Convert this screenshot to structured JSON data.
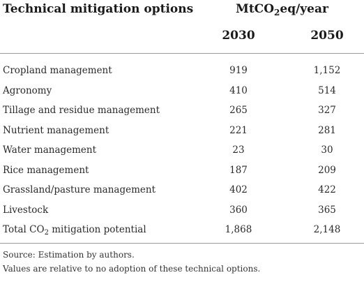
{
  "header": {
    "title": "Technical mitigation options",
    "unit_prefix": "MtCO",
    "unit_subscript": "2",
    "unit_suffix": "eq/year",
    "years": [
      "2030",
      "2050"
    ]
  },
  "rows": [
    {
      "label": "Cropland management",
      "v2030": "919",
      "v2050": "1,152"
    },
    {
      "label": "Agronomy",
      "v2030": "410",
      "v2050": "514"
    },
    {
      "label": "Tillage and residue management",
      "v2030": "265",
      "v2050": "327"
    },
    {
      "label": "Nutrient management",
      "v2030": "221",
      "v2050": "281"
    },
    {
      "label": "Water management",
      "v2030": "23",
      "v2050": "30"
    },
    {
      "label": "Rice management",
      "v2030": "187",
      "v2050": "209"
    },
    {
      "label": "Grassland/pasture management",
      "v2030": "402",
      "v2050": "422"
    },
    {
      "label": "Livestock",
      "v2030": "360",
      "v2050": "365"
    }
  ],
  "total": {
    "label_prefix": "Total CO",
    "label_subscript": "2",
    "label_suffix": " mitigation potential",
    "v2030": "1,868",
    "v2050": "2,148"
  },
  "footnotes": {
    "source": "Source: Estimation by authors.",
    "note": "Values are relative to no adoption of these technical options."
  }
}
